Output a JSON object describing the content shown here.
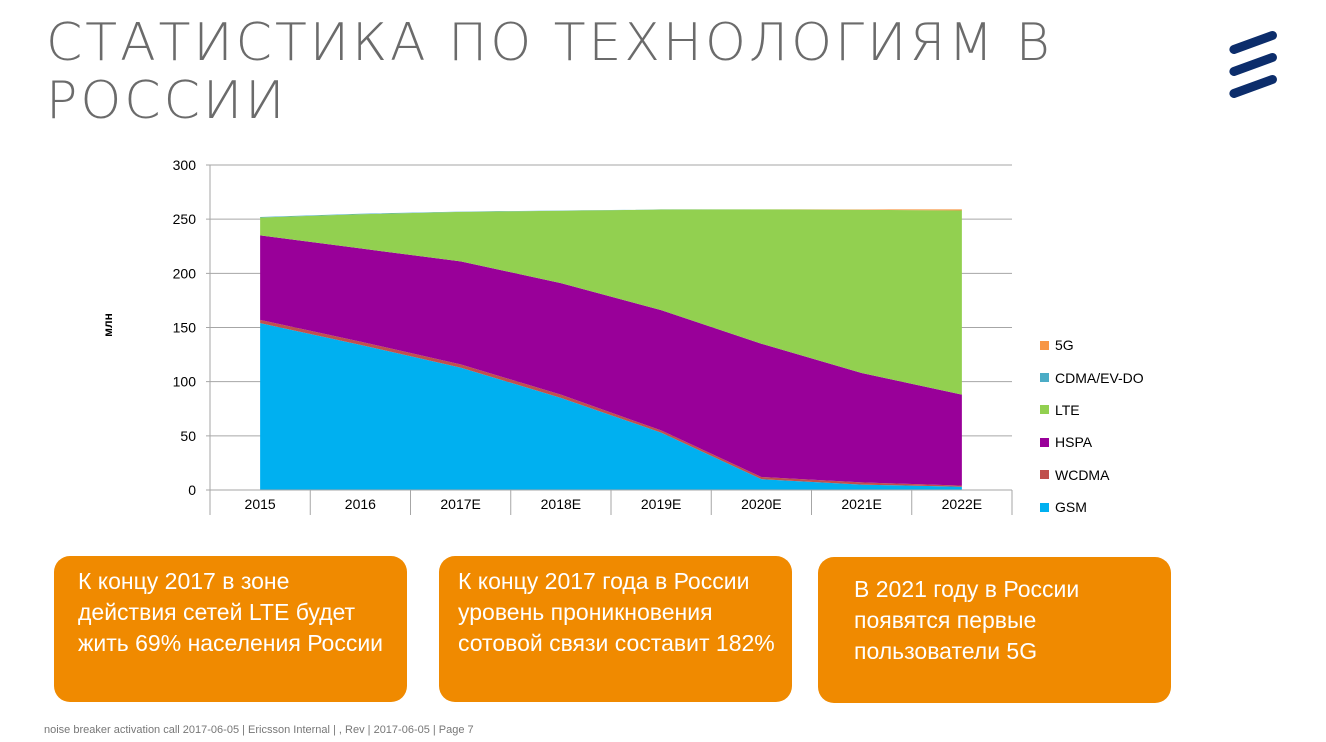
{
  "title": "Статистика по технологиям в России",
  "logo_name": "Ericsson",
  "chart_data": {
    "type": "area",
    "stacked": true,
    "categories": [
      "2015",
      "2016",
      "2017E",
      "2018E",
      "2019E",
      "2020E",
      "2021E",
      "2022E"
    ],
    "series": [
      {
        "name": "GSM",
        "color": "#00b0f0",
        "values": [
          154,
          134,
          113,
          85,
          53,
          10,
          5,
          3
        ]
      },
      {
        "name": "WCDMA",
        "color": "#c0504d",
        "values": [
          3,
          3,
          3,
          3,
          2,
          2,
          2,
          1
        ]
      },
      {
        "name": "HSPA",
        "color": "#990099",
        "values": [
          78,
          86,
          95,
          103,
          111,
          123,
          101,
          84
        ]
      },
      {
        "name": "LTE",
        "color": "#92d050",
        "values": [
          16.5,
          31.5,
          45.7,
          66.8,
          92.9,
          124,
          150.7,
          170
        ]
      },
      {
        "name": "CDMA/EV-DO",
        "color": "#4bacc6",
        "values": [
          0.5,
          0.5,
          0.3,
          0.2,
          0.1,
          0,
          0,
          0
        ]
      },
      {
        "name": "5G",
        "color": "#f79646",
        "values": [
          0,
          0,
          0,
          0,
          0,
          0,
          0.3,
          1
        ]
      }
    ],
    "ylabel": "млн",
    "ylim": [
      0,
      300
    ],
    "yticks": [
      0,
      50,
      100,
      150,
      200,
      250,
      300
    ],
    "grid": true,
    "legend": "right"
  },
  "boxes": [
    "К концу 2017 в зоне действия сетей LTE будет жить 69% населения России",
    "К концу 2017 года в России уровень проникновения сотовой связи составит 182%",
    "В 2021 году в России появятся первые пользователи 5G"
  ],
  "footer": "noise breaker activation call 2017-06-05  |  Ericsson Internal  |  , Rev    |  2017-06-05  |  Page 7"
}
